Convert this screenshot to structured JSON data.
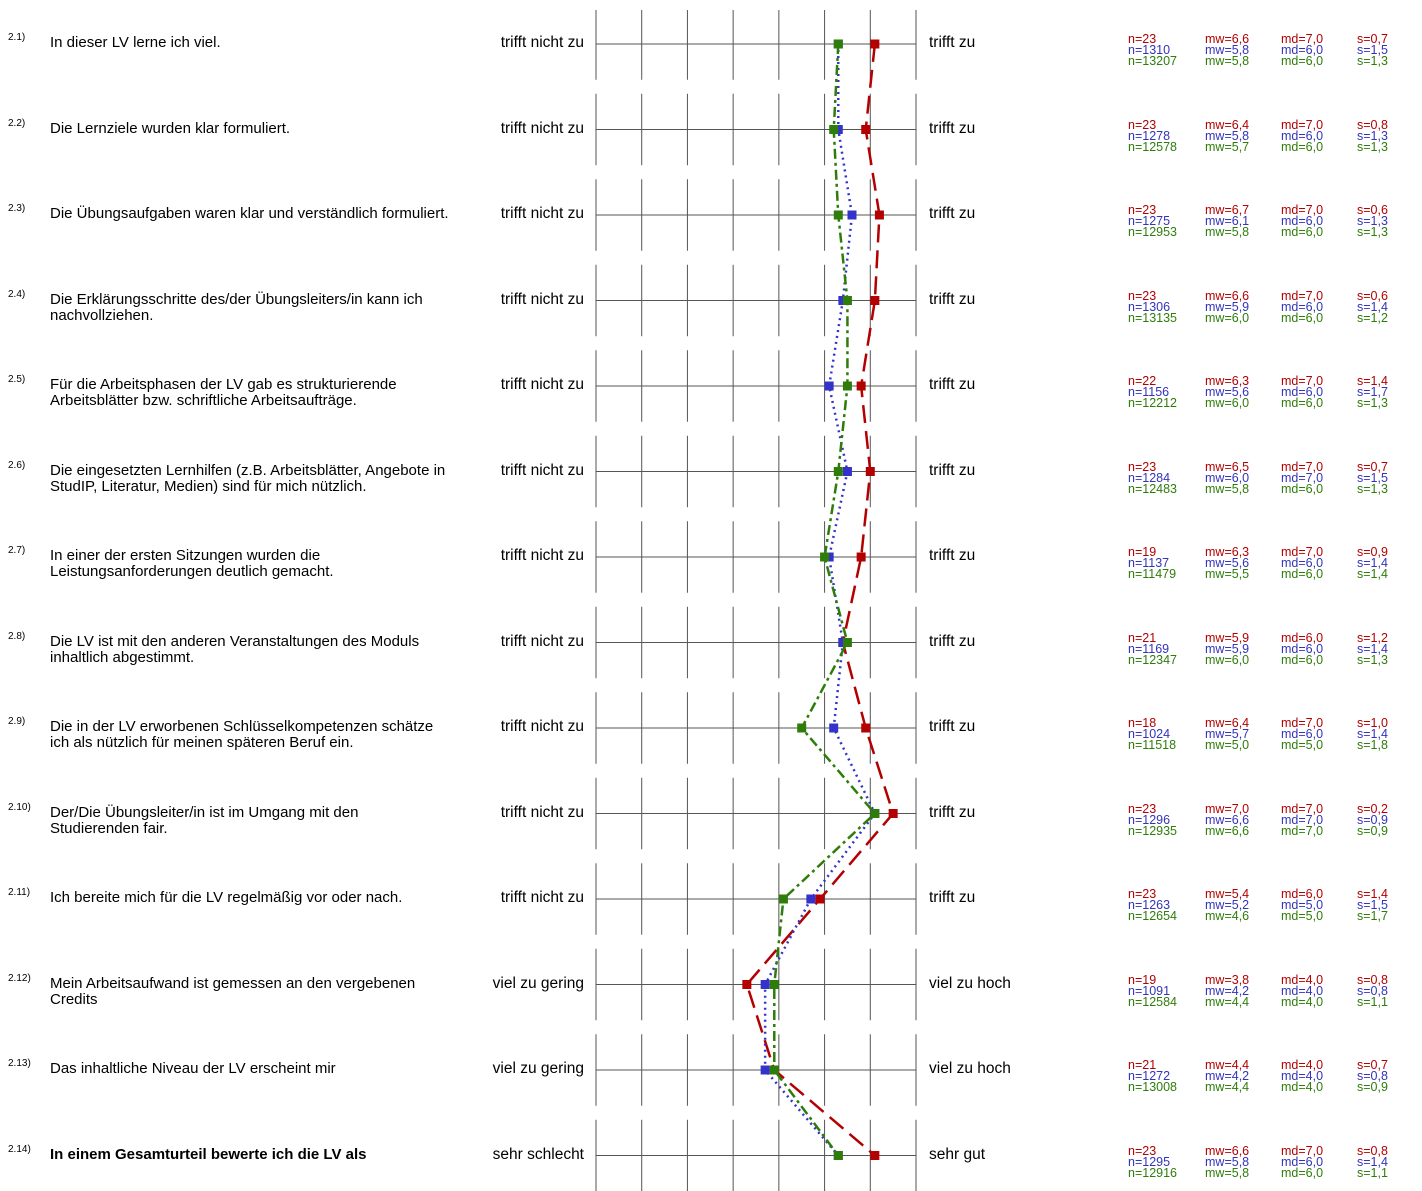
{
  "chart_data": {
    "type": "line",
    "scale_points": 7,
    "series": [
      {
        "key": "red",
        "color": "#b30000",
        "dash": "18,8"
      },
      {
        "key": "blue",
        "color": "#3333cc",
        "dash": "2,4"
      },
      {
        "key": "green",
        "color": "#2e7d0a",
        "dash": "10,4,3,4"
      }
    ],
    "items": [
      {
        "num": "2.1)",
        "text": "In dieser LV lerne ich viel.",
        "left": "trifft nicht zu",
        "right": "trifft zu",
        "stats": [
          [
            "n=23",
            "mw=6,6",
            "md=7,0",
            "s=0,7"
          ],
          [
            "n=1310",
            "mw=5,8",
            "md=6,0",
            "s=1,5"
          ],
          [
            "n=13207",
            "mw=5,8",
            "md=6,0",
            "s=1,3"
          ]
        ],
        "values": [
          6.6,
          5.8,
          5.8
        ]
      },
      {
        "num": "2.2)",
        "text": "Die Lernziele wurden klar formuliert.",
        "left": "trifft nicht zu",
        "right": "trifft zu",
        "stats": [
          [
            "n=23",
            "mw=6,4",
            "md=7,0",
            "s=0,8"
          ],
          [
            "n=1278",
            "mw=5,8",
            "md=6,0",
            "s=1,3"
          ],
          [
            "n=12578",
            "mw=5,7",
            "md=6,0",
            "s=1,3"
          ]
        ],
        "values": [
          6.4,
          5.8,
          5.7
        ]
      },
      {
        "num": "2.3)",
        "text": "Die Übungsaufgaben waren klar und verständlich formuliert.",
        "left": "trifft nicht zu",
        "right": "trifft zu",
        "stats": [
          [
            "n=23",
            "mw=6,7",
            "md=7,0",
            "s=0,6"
          ],
          [
            "n=1275",
            "mw=6,1",
            "md=6,0",
            "s=1,3"
          ],
          [
            "n=12953",
            "mw=5,8",
            "md=6,0",
            "s=1,3"
          ]
        ],
        "values": [
          6.7,
          6.1,
          5.8
        ]
      },
      {
        "num": "2.4)",
        "text": "Die Erklärungsschritte des/der Übungsleiters/in kann ich nachvollziehen.",
        "left": "trifft nicht zu",
        "right": "trifft zu",
        "stats": [
          [
            "n=23",
            "mw=6,6",
            "md=7,0",
            "s=0,6"
          ],
          [
            "n=1306",
            "mw=5,9",
            "md=6,0",
            "s=1,4"
          ],
          [
            "n=13135",
            "mw=6,0",
            "md=6,0",
            "s=1,2"
          ]
        ],
        "values": [
          6.6,
          5.9,
          6.0
        ]
      },
      {
        "num": "2.5)",
        "text": "Für die Arbeitsphasen der LV gab es strukturierende Arbeitsblätter bzw. schriftliche Arbeitsaufträge.",
        "left": "trifft nicht zu",
        "right": "trifft zu",
        "stats": [
          [
            "n=22",
            "mw=6,3",
            "md=7,0",
            "s=1,4"
          ],
          [
            "n=1156",
            "mw=5,6",
            "md=6,0",
            "s=1,7"
          ],
          [
            "n=12212",
            "mw=6,0",
            "md=6,0",
            "s=1,3"
          ]
        ],
        "values": [
          6.3,
          5.6,
          6.0
        ]
      },
      {
        "num": "2.6)",
        "text": "Die eingesetzten Lernhilfen (z.B. Arbeitsblätter, Angebote in StudIP, Literatur, Medien) sind für mich nützlich.",
        "left": "trifft nicht zu",
        "right": "trifft zu",
        "stats": [
          [
            "n=23",
            "mw=6,5",
            "md=7,0",
            "s=0,7"
          ],
          [
            "n=1284",
            "mw=6,0",
            "md=7,0",
            "s=1,5"
          ],
          [
            "n=12483",
            "mw=5,8",
            "md=6,0",
            "s=1,3"
          ]
        ],
        "values": [
          6.5,
          6.0,
          5.8
        ]
      },
      {
        "num": "2.7)",
        "text": "In einer der ersten Sitzungen wurden die Leistungsanforderungen deutlich gemacht.",
        "left": "trifft nicht zu",
        "right": "trifft zu",
        "stats": [
          [
            "n=19",
            "mw=6,3",
            "md=7,0",
            "s=0,9"
          ],
          [
            "n=1137",
            "mw=5,6",
            "md=6,0",
            "s=1,4"
          ],
          [
            "n=11479",
            "mw=5,5",
            "md=6,0",
            "s=1,4"
          ]
        ],
        "values": [
          6.3,
          5.6,
          5.5
        ]
      },
      {
        "num": "2.8)",
        "text": "Die LV ist mit den anderen Veranstaltungen des Moduls inhaltlich abgestimmt.",
        "left": "trifft nicht zu",
        "right": "trifft zu",
        "stats": [
          [
            "n=21",
            "mw=5,9",
            "md=6,0",
            "s=1,2"
          ],
          [
            "n=1169",
            "mw=5,9",
            "md=6,0",
            "s=1,4"
          ],
          [
            "n=12347",
            "mw=6,0",
            "md=6,0",
            "s=1,3"
          ]
        ],
        "values": [
          5.9,
          5.9,
          6.0
        ]
      },
      {
        "num": "2.9)",
        "text": "Die in der LV erworbenen Schlüsselkompetenzen schätze ich als nützlich für meinen späteren Beruf ein.",
        "left": "trifft nicht zu",
        "right": "trifft zu",
        "stats": [
          [
            "n=18",
            "mw=6,4",
            "md=7,0",
            "s=1,0"
          ],
          [
            "n=1024",
            "mw=5,7",
            "md=6,0",
            "s=1,4"
          ],
          [
            "n=11518",
            "mw=5,0",
            "md=5,0",
            "s=1,8"
          ]
        ],
        "values": [
          6.4,
          5.7,
          5.0
        ]
      },
      {
        "num": "2.10)",
        "text": "Der/Die Übungsleiter/in ist im Umgang mit den Studierenden fair.",
        "left": "trifft nicht zu",
        "right": "trifft zu",
        "stats": [
          [
            "n=23",
            "mw=7,0",
            "md=7,0",
            "s=0,2"
          ],
          [
            "n=1296",
            "mw=6,6",
            "md=7,0",
            "s=0,9"
          ],
          [
            "n=12935",
            "mw=6,6",
            "md=7,0",
            "s=0,9"
          ]
        ],
        "values": [
          7.0,
          6.6,
          6.6
        ]
      },
      {
        "num": "2.11)",
        "text": "Ich bereite mich für die LV regelmäßig vor oder nach.",
        "left": "trifft nicht zu",
        "right": "trifft zu",
        "stats": [
          [
            "n=23",
            "mw=5,4",
            "md=6,0",
            "s=1,4"
          ],
          [
            "n=1263",
            "mw=5,2",
            "md=5,0",
            "s=1,5"
          ],
          [
            "n=12654",
            "mw=4,6",
            "md=5,0",
            "s=1,7"
          ]
        ],
        "values": [
          5.4,
          5.2,
          4.6
        ]
      },
      {
        "num": "2.12)",
        "text": "Mein Arbeitsaufwand ist gemessen an den vergebenen Credits",
        "left": "viel zu gering",
        "right": "viel zu hoch",
        "stats": [
          [
            "n=19",
            "mw=3,8",
            "md=4,0",
            "s=0,8"
          ],
          [
            "n=1091",
            "mw=4,2",
            "md=4,0",
            "s=0,8"
          ],
          [
            "n=12584",
            "mw=4,4",
            "md=4,0",
            "s=1,1"
          ]
        ],
        "values": [
          3.8,
          4.2,
          4.4
        ]
      },
      {
        "num": "2.13)",
        "text": "Das inhaltliche Niveau der LV erscheint mir",
        "left": "viel zu gering",
        "right": "viel zu hoch",
        "stats": [
          [
            "n=21",
            "mw=4,4",
            "md=4,0",
            "s=0,7"
          ],
          [
            "n=1272",
            "mw=4,2",
            "md=4,0",
            "s=0,8"
          ],
          [
            "n=13008",
            "mw=4,4",
            "md=4,0",
            "s=0,9"
          ]
        ],
        "values": [
          4.4,
          4.2,
          4.4
        ]
      },
      {
        "num": "2.14)",
        "text": "In einem Gesamturteil bewerte ich die LV als",
        "bold": true,
        "left": "sehr schlecht",
        "right": "sehr gut",
        "stats": [
          [
            "n=23",
            "mw=6,6",
            "md=7,0",
            "s=0,8"
          ],
          [
            "n=1295",
            "mw=5,8",
            "md=6,0",
            "s=1,4"
          ],
          [
            "n=12916",
            "mw=5,8",
            "md=6,0",
            "s=1,1"
          ]
        ],
        "values": [
          6.6,
          5.8,
          5.8
        ]
      }
    ]
  }
}
